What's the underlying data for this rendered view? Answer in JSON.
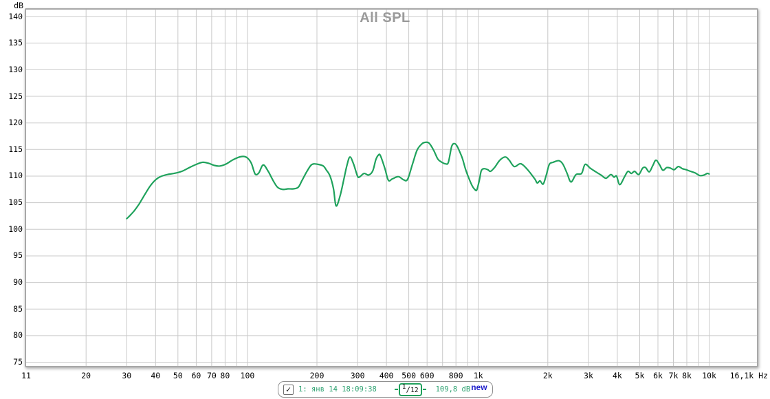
{
  "title": "All SPL",
  "icons": {
    "check": "✓"
  },
  "colors": {
    "trace": "#1fa25c",
    "grid": "#c9c9c9",
    "frame": "#a8a8a8",
    "title_text": "#9a9a9a",
    "legend_text": "#2aa06e",
    "badge_text": "#2222cc"
  },
  "legend": {
    "checkbox_checked": true,
    "measurement_label": "1: янв 14 18:09:38",
    "smoothing": {
      "label": "1/12",
      "num": "1",
      "sep": "/",
      "den": "12"
    },
    "level_value": "109,8 dB",
    "badge": "new"
  },
  "chart_data": {
    "type": "line",
    "title": "All SPL",
    "xlabel": "Hz",
    "ylabel": "dB",
    "x_scale": "log",
    "grid": true,
    "legend_position": "bottom",
    "xlim": [
      11,
      16100
    ],
    "ylim": [
      74.3,
      141.3
    ],
    "y_ticks": [
      140,
      135,
      130,
      125,
      120,
      115,
      110,
      105,
      100,
      95,
      90,
      85,
      80,
      75
    ],
    "x_gridlines": [
      20,
      30,
      40,
      50,
      60,
      70,
      80,
      90,
      100,
      200,
      300,
      400,
      500,
      600,
      700,
      800,
      900,
      1000,
      2000,
      3000,
      4000,
      5000,
      6000,
      7000,
      8000,
      9000,
      10000
    ],
    "x_tick_labels": [
      {
        "f": 11,
        "t": "11"
      },
      {
        "f": 20,
        "t": "20"
      },
      {
        "f": 30,
        "t": "30"
      },
      {
        "f": 40,
        "t": "40"
      },
      {
        "f": 50,
        "t": "50"
      },
      {
        "f": 60,
        "t": "60"
      },
      {
        "f": 70,
        "t": "70"
      },
      {
        "f": 80,
        "t": "80"
      },
      {
        "f": 100,
        "t": "100"
      },
      {
        "f": 200,
        "t": "200"
      },
      {
        "f": 300,
        "t": "300"
      },
      {
        "f": 400,
        "t": "400"
      },
      {
        "f": 500,
        "t": "500"
      },
      {
        "f": 600,
        "t": "600"
      },
      {
        "f": 800,
        "t": "800"
      },
      {
        "f": 1000,
        "t": "1k"
      },
      {
        "f": 2000,
        "t": "2k"
      },
      {
        "f": 3000,
        "t": "3k"
      },
      {
        "f": 4000,
        "t": "4k"
      },
      {
        "f": 5000,
        "t": "5k"
      },
      {
        "f": 6000,
        "t": "6k"
      },
      {
        "f": 7000,
        "t": "7k"
      },
      {
        "f": 8000,
        "t": "8k"
      },
      {
        "f": 10000,
        "t": "10k"
      },
      {
        "f": 16100,
        "t": "16,1k Hz",
        "align": "right"
      }
    ],
    "series": [
      {
        "name": "1: янв 14 18:09:38",
        "color": "#1fa25c",
        "smoothing": "1/12",
        "points": [
          [
            30,
            102.0
          ],
          [
            31,
            102.6
          ],
          [
            32.5,
            103.6
          ],
          [
            34,
            104.8
          ],
          [
            36,
            106.6
          ],
          [
            38,
            108.2
          ],
          [
            40,
            109.3
          ],
          [
            42,
            109.9
          ],
          [
            45,
            110.3
          ],
          [
            48,
            110.5
          ],
          [
            52,
            110.9
          ],
          [
            56,
            111.6
          ],
          [
            60,
            112.2
          ],
          [
            64,
            112.6
          ],
          [
            68,
            112.4
          ],
          [
            72,
            112.0
          ],
          [
            76,
            111.9
          ],
          [
            81,
            112.3
          ],
          [
            86,
            113.0
          ],
          [
            91,
            113.5
          ],
          [
            96,
            113.7
          ],
          [
            100,
            113.4
          ],
          [
            104,
            112.4
          ],
          [
            108,
            110.4
          ],
          [
            112,
            110.6
          ],
          [
            117,
            112.1
          ],
          [
            123,
            110.9
          ],
          [
            129,
            109.2
          ],
          [
            135,
            107.9
          ],
          [
            142,
            107.5
          ],
          [
            150,
            107.6
          ],
          [
            158,
            107.6
          ],
          [
            166,
            107.9
          ],
          [
            172,
            109.1
          ],
          [
            180,
            110.7
          ],
          [
            188,
            112.0
          ],
          [
            194,
            112.3
          ],
          [
            203,
            112.2
          ],
          [
            213,
            111.9
          ],
          [
            220,
            111.1
          ],
          [
            228,
            110.0
          ],
          [
            236,
            107.6
          ],
          [
            242,
            104.4
          ],
          [
            252,
            106.3
          ],
          [
            261,
            109.2
          ],
          [
            270,
            112.1
          ],
          [
            278,
            113.6
          ],
          [
            288,
            112.3
          ],
          [
            299,
            110.1
          ],
          [
            305,
            109.8
          ],
          [
            320,
            110.5
          ],
          [
            335,
            110.2
          ],
          [
            349,
            111.0
          ],
          [
            360,
            113.1
          ],
          [
            370,
            114.0
          ],
          [
            377,
            113.8
          ],
          [
            394,
            111.4
          ],
          [
            408,
            109.2
          ],
          [
            425,
            109.5
          ],
          [
            451,
            109.9
          ],
          [
            475,
            109.3
          ],
          [
            494,
            109.4
          ],
          [
            519,
            112.3
          ],
          [
            543,
            114.9
          ],
          [
            571,
            116.1
          ],
          [
            590,
            116.35
          ],
          [
            612,
            116.2
          ],
          [
            640,
            114.9
          ],
          [
            668,
            113.2
          ],
          [
            695,
            112.6
          ],
          [
            722,
            112.3
          ],
          [
            742,
            112.6
          ],
          [
            767,
            115.6
          ],
          [
            790,
            116.1
          ],
          [
            810,
            115.6
          ],
          [
            830,
            114.6
          ],
          [
            855,
            113.2
          ],
          [
            880,
            111.3
          ],
          [
            910,
            109.6
          ],
          [
            940,
            108.2
          ],
          [
            965,
            107.5
          ],
          [
            985,
            107.4
          ],
          [
            1010,
            109.2
          ],
          [
            1030,
            111.0
          ],
          [
            1060,
            111.4
          ],
          [
            1100,
            111.2
          ],
          [
            1130,
            110.9
          ],
          [
            1180,
            111.7
          ],
          [
            1240,
            113.0
          ],
          [
            1310,
            113.6
          ],
          [
            1360,
            113.0
          ],
          [
            1430,
            111.8
          ],
          [
            1510,
            112.3
          ],
          [
            1560,
            112.1
          ],
          [
            1650,
            111.0
          ],
          [
            1760,
            109.4
          ],
          [
            1800,
            108.7
          ],
          [
            1850,
            109.1
          ],
          [
            1910,
            108.5
          ],
          [
            1970,
            110.2
          ],
          [
            2030,
            112.2
          ],
          [
            2110,
            112.6
          ],
          [
            2230,
            112.9
          ],
          [
            2320,
            112.3
          ],
          [
            2420,
            110.6
          ],
          [
            2520,
            108.9
          ],
          [
            2650,
            110.3
          ],
          [
            2800,
            110.5
          ],
          [
            2900,
            112.2
          ],
          [
            3050,
            111.5
          ],
          [
            3200,
            110.9
          ],
          [
            3400,
            110.2
          ],
          [
            3570,
            109.6
          ],
          [
            3750,
            110.3
          ],
          [
            3870,
            109.8
          ],
          [
            3970,
            110.0
          ],
          [
            4100,
            108.4
          ],
          [
            4300,
            109.9
          ],
          [
            4450,
            110.9
          ],
          [
            4600,
            110.5
          ],
          [
            4750,
            110.9
          ],
          [
            4950,
            110.3
          ],
          [
            5150,
            111.5
          ],
          [
            5300,
            111.6
          ],
          [
            5500,
            110.8
          ],
          [
            5700,
            112.0
          ],
          [
            5880,
            113.0
          ],
          [
            6100,
            112.1
          ],
          [
            6300,
            111.1
          ],
          [
            6550,
            111.6
          ],
          [
            6800,
            111.5
          ],
          [
            7050,
            111.2
          ],
          [
            7350,
            111.8
          ],
          [
            7650,
            111.4
          ],
          [
            7950,
            111.2
          ],
          [
            8300,
            110.9
          ],
          [
            8700,
            110.6
          ],
          [
            9100,
            110.1
          ],
          [
            9500,
            110.2
          ],
          [
            9800,
            110.5
          ],
          [
            10000,
            110.4
          ]
        ]
      }
    ]
  }
}
